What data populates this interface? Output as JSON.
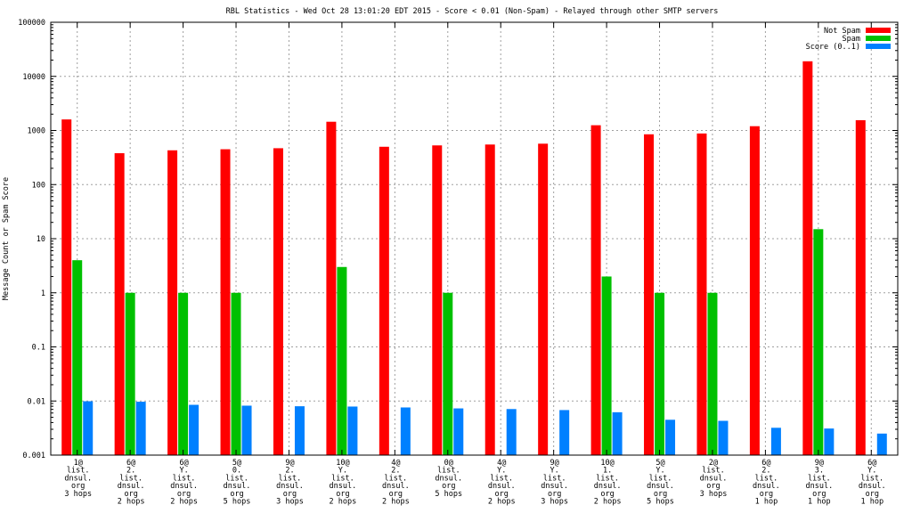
{
  "chart_data": {
    "type": "bar",
    "title": "RBL Statistics - Wed Oct 28 13:01:20 EDT 2015 - Score < 0.01 (Non-Spam) - Relayed through other SMTP servers",
    "ylabel": "Message Count or Spam Score",
    "xlabel": "",
    "yscale": "log",
    "ylim": [
      0.001,
      100000
    ],
    "ytick_labels": [
      "0.001",
      "0.01",
      "0.1",
      "1",
      "10",
      "100",
      "1000",
      "10000",
      "100000"
    ],
    "grid": true,
    "legend_position": "top-right",
    "categories": [
      [
        "1@",
        "list.",
        "dnsul.",
        "org",
        "3 hops"
      ],
      [
        "6@",
        "2.",
        "list.",
        "dnsul.",
        "org",
        "2 hops"
      ],
      [
        "6@",
        "Y.",
        "list.",
        "dnsul.",
        "org",
        "2 hops"
      ],
      [
        "5@",
        "0.",
        "list.",
        "dnsul.",
        "org",
        "5 hops"
      ],
      [
        "9@",
        "2.",
        "list.",
        "dnsul.",
        "org",
        "3 hops"
      ],
      [
        "10@",
        "Y.",
        "list.",
        "dnsul.",
        "org",
        "2 hops"
      ],
      [
        "4@",
        "2.",
        "list.",
        "dnsul.",
        "org",
        "2 hops"
      ],
      [
        "0@",
        "list.",
        "dnsul.",
        "org",
        "5 hops"
      ],
      [
        "4@",
        "Y.",
        "list.",
        "dnsul.",
        "org",
        "2 hops"
      ],
      [
        "9@",
        "Y.",
        "list.",
        "dnsul.",
        "org",
        "3 hops"
      ],
      [
        "10@",
        "1.",
        "list.",
        "dnsul.",
        "org",
        "2 hops"
      ],
      [
        "5@",
        "Y.",
        "list.",
        "dnsul.",
        "org",
        "5 hops"
      ],
      [
        "2@",
        "list.",
        "dnsul.",
        "org",
        "3 hops"
      ],
      [
        "6@",
        "2.",
        "list.",
        "dnsul.",
        "org",
        "1 hop"
      ],
      [
        "9@",
        "3.",
        "list.",
        "dnsul.",
        "org",
        "1 hop"
      ],
      [
        "6@",
        "Y.",
        "list.",
        "dnsul.",
        "org",
        "1 hop"
      ]
    ],
    "series": [
      {
        "name": "Not Spam",
        "color": "#ff0000",
        "values": [
          1600,
          380,
          430,
          450,
          470,
          1450,
          500,
          530,
          550,
          570,
          1250,
          850,
          880,
          1200,
          19000,
          1550
        ]
      },
      {
        "name": "Spam",
        "color": "#00c000",
        "values": [
          4,
          1,
          1,
          1,
          null,
          3,
          null,
          1,
          null,
          null,
          2,
          1,
          1,
          null,
          15,
          null
        ]
      },
      {
        "name": "Score (0..1)",
        "color": "#0080ff",
        "values": [
          0.0099,
          0.0097,
          0.0085,
          0.0082,
          0.008,
          0.0079,
          0.0076,
          0.0073,
          0.0071,
          0.0068,
          0.0062,
          0.0045,
          0.0043,
          0.0032,
          0.0031,
          0.0025
        ]
      }
    ]
  }
}
